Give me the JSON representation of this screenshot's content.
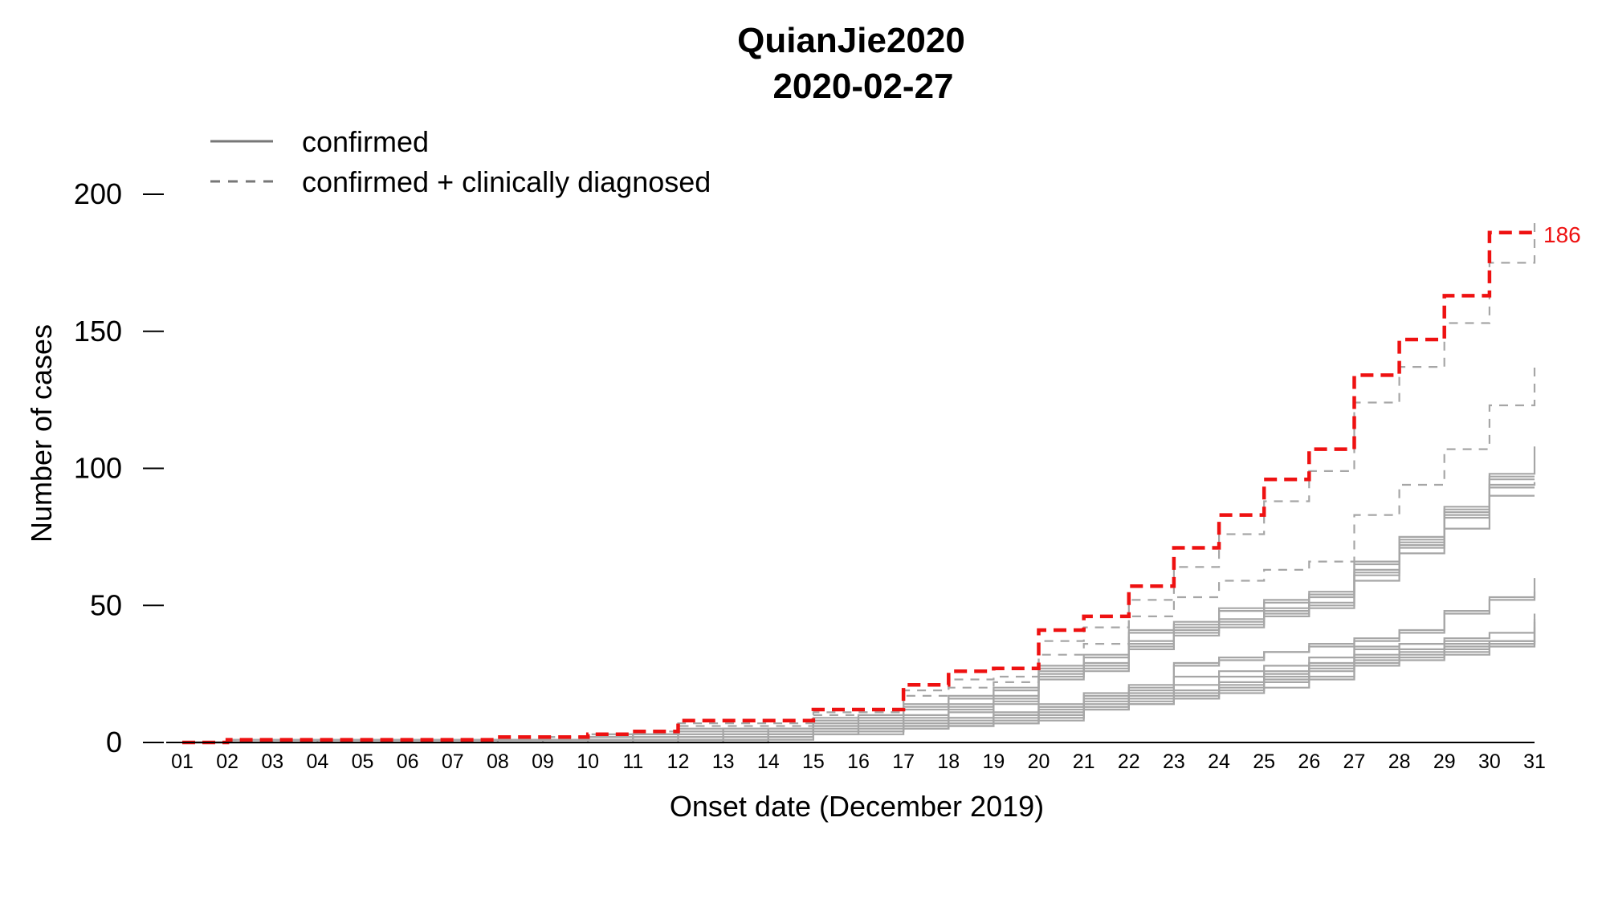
{
  "chart_data": {
    "type": "line",
    "step": "post",
    "title": "QuianJie2020",
    "subtitle": "2020-02-27",
    "xlabel": "Onset date (December 2019)",
    "ylabel": "Number of cases",
    "xlim": [
      1,
      31
    ],
    "ylim": [
      0,
      200
    ],
    "yticks": [
      0,
      50,
      100,
      150,
      200
    ],
    "x_tick_labels": [
      "01",
      "02",
      "03",
      "04",
      "05",
      "06",
      "07",
      "08",
      "09",
      "10",
      "11",
      "12",
      "13",
      "14",
      "15",
      "16",
      "17",
      "18",
      "19",
      "20",
      "21",
      "22",
      "23",
      "24",
      "25",
      "26",
      "27",
      "28",
      "29",
      "30",
      "31"
    ],
    "grid": false,
    "legend_position": "top-left",
    "legend": [
      {
        "label": "confirmed",
        "style": "solid"
      },
      {
        "label": "confirmed + clinically diagnosed",
        "style": "dashed"
      }
    ],
    "highlight_color": "#ee1111",
    "series_color": "#a6a6a6",
    "annotation": {
      "text": "186",
      "x": 31,
      "y": 186
    },
    "x": [
      1,
      2,
      3,
      4,
      5,
      6,
      7,
      8,
      9,
      10,
      11,
      12,
      13,
      14,
      15,
      16,
      17,
      18,
      19,
      20,
      21,
      22,
      23,
      24,
      25,
      26,
      27,
      28,
      29,
      30,
      31
    ],
    "series": [
      {
        "style": "dashed",
        "highlight": true,
        "values": [
          0,
          1,
          1,
          1,
          1,
          1,
          1,
          2,
          2,
          3,
          4,
          8,
          8,
          8,
          12,
          12,
          21,
          26,
          27,
          41,
          46,
          57,
          71,
          83,
          96,
          107,
          134,
          147,
          163,
          186,
          186
        ]
      },
      {
        "style": "dashed",
        "highlight": false,
        "values": [
          0,
          1,
          1,
          1,
          1,
          1,
          1,
          1,
          2,
          3,
          4,
          7,
          7,
          7,
          11,
          11,
          19,
          23,
          24,
          37,
          42,
          52,
          64,
          76,
          88,
          99,
          124,
          137,
          153,
          175,
          191
        ]
      },
      {
        "style": "dashed",
        "highlight": false,
        "values": [
          0,
          1,
          1,
          1,
          1,
          1,
          1,
          1,
          2,
          3,
          3,
          6,
          6,
          6,
          10,
          11,
          17,
          20,
          22,
          32,
          36,
          46,
          53,
          59,
          63,
          66,
          83,
          94,
          107,
          123,
          139
        ]
      },
      {
        "style": "solid",
        "highlight": false,
        "values": [
          0,
          1,
          1,
          1,
          1,
          1,
          1,
          1,
          1,
          2,
          3,
          5,
          5,
          5,
          9,
          10,
          14,
          17,
          20,
          28,
          32,
          41,
          44,
          49,
          52,
          55,
          66,
          75,
          86,
          98,
          108
        ]
      },
      {
        "style": "solid",
        "highlight": false,
        "values": [
          0,
          1,
          1,
          1,
          1,
          1,
          1,
          1,
          1,
          2,
          3,
          5,
          5,
          5,
          8,
          9,
          13,
          16,
          19,
          27,
          31,
          40,
          43,
          48,
          51,
          54,
          65,
          74,
          85,
          97,
          97
        ]
      },
      {
        "style": "solid",
        "highlight": false,
        "values": [
          0,
          0,
          1,
          1,
          1,
          1,
          1,
          1,
          1,
          2,
          3,
          4,
          5,
          5,
          8,
          9,
          12,
          14,
          17,
          26,
          29,
          37,
          42,
          45,
          49,
          53,
          63,
          73,
          84,
          96,
          96
        ]
      },
      {
        "style": "solid",
        "highlight": false,
        "values": [
          0,
          0,
          0,
          1,
          1,
          1,
          1,
          1,
          1,
          1,
          2,
          4,
          4,
          5,
          7,
          8,
          10,
          13,
          16,
          25,
          28,
          36,
          41,
          44,
          48,
          51,
          62,
          72,
          83,
          94,
          95
        ]
      },
      {
        "style": "solid",
        "highlight": false,
        "values": [
          0,
          0,
          0,
          0,
          1,
          1,
          1,
          1,
          1,
          1,
          2,
          3,
          4,
          4,
          7,
          7,
          9,
          12,
          15,
          24,
          27,
          35,
          40,
          43,
          47,
          50,
          61,
          71,
          82,
          93,
          93
        ]
      },
      {
        "style": "solid",
        "highlight": false,
        "values": [
          0,
          0,
          0,
          0,
          0,
          1,
          1,
          1,
          1,
          1,
          2,
          3,
          3,
          4,
          6,
          7,
          8,
          11,
          14,
          23,
          26,
          34,
          39,
          42,
          46,
          49,
          59,
          69,
          78,
          90,
          90
        ]
      },
      {
        "style": "solid",
        "highlight": false,
        "values": [
          0,
          0,
          0,
          0,
          0,
          0,
          1,
          1,
          1,
          1,
          1,
          2,
          3,
          4,
          6,
          6,
          8,
          9,
          11,
          14,
          18,
          21,
          29,
          31,
          33,
          36,
          38,
          41,
          48,
          53,
          60
        ]
      },
      {
        "style": "solid",
        "highlight": false,
        "values": [
          0,
          0,
          0,
          0,
          0,
          0,
          0,
          1,
          1,
          1,
          1,
          2,
          3,
          3,
          5,
          6,
          7,
          9,
          10,
          13,
          17,
          20,
          28,
          30,
          33,
          35,
          37,
          40,
          47,
          52,
          55
        ]
      },
      {
        "style": "solid",
        "highlight": false,
        "values": [
          0,
          0,
          0,
          0,
          0,
          0,
          0,
          0,
          1,
          1,
          1,
          1,
          2,
          3,
          5,
          5,
          7,
          8,
          10,
          13,
          16,
          19,
          24,
          26,
          28,
          31,
          35,
          36,
          38,
          40,
          47
        ]
      },
      {
        "style": "solid",
        "highlight": false,
        "values": [
          0,
          0,
          0,
          0,
          0,
          0,
          0,
          0,
          0,
          1,
          1,
          1,
          2,
          3,
          4,
          5,
          6,
          7,
          9,
          12,
          15,
          18,
          21,
          24,
          26,
          29,
          34,
          36,
          37,
          37,
          45
        ]
      },
      {
        "style": "solid",
        "highlight": false,
        "values": [
          0,
          0,
          0,
          0,
          0,
          0,
          0,
          0,
          0,
          0,
          1,
          1,
          1,
          3,
          4,
          5,
          6,
          7,
          8,
          11,
          14,
          17,
          19,
          22,
          25,
          28,
          32,
          34,
          36,
          37,
          44
        ]
      },
      {
        "style": "solid",
        "highlight": false,
        "values": [
          0,
          0,
          0,
          0,
          0,
          0,
          0,
          0,
          0,
          0,
          0,
          1,
          1,
          2,
          4,
          4,
          6,
          7,
          8,
          10,
          13,
          16,
          18,
          21,
          24,
          27,
          31,
          33,
          35,
          37,
          42
        ]
      },
      {
        "style": "solid",
        "highlight": false,
        "values": [
          0,
          0,
          0,
          0,
          0,
          0,
          0,
          0,
          0,
          0,
          0,
          0,
          1,
          2,
          3,
          4,
          5,
          6,
          7,
          9,
          13,
          15,
          17,
          20,
          23,
          26,
          30,
          32,
          34,
          36,
          37
        ]
      },
      {
        "style": "solid",
        "highlight": false,
        "values": [
          0,
          0,
          0,
          0,
          0,
          0,
          0,
          0,
          0,
          0,
          0,
          0,
          0,
          2,
          3,
          4,
          5,
          6,
          7,
          9,
          12,
          14,
          16,
          19,
          22,
          24,
          29,
          31,
          33,
          36,
          37
        ]
      },
      {
        "style": "solid",
        "highlight": false,
        "values": [
          0,
          0,
          0,
          0,
          0,
          0,
          0,
          0,
          0,
          0,
          0,
          0,
          0,
          1,
          3,
          3,
          5,
          6,
          7,
          8,
          12,
          14,
          16,
          18,
          20,
          23,
          28,
          30,
          32,
          35,
          37
        ]
      }
    ]
  }
}
